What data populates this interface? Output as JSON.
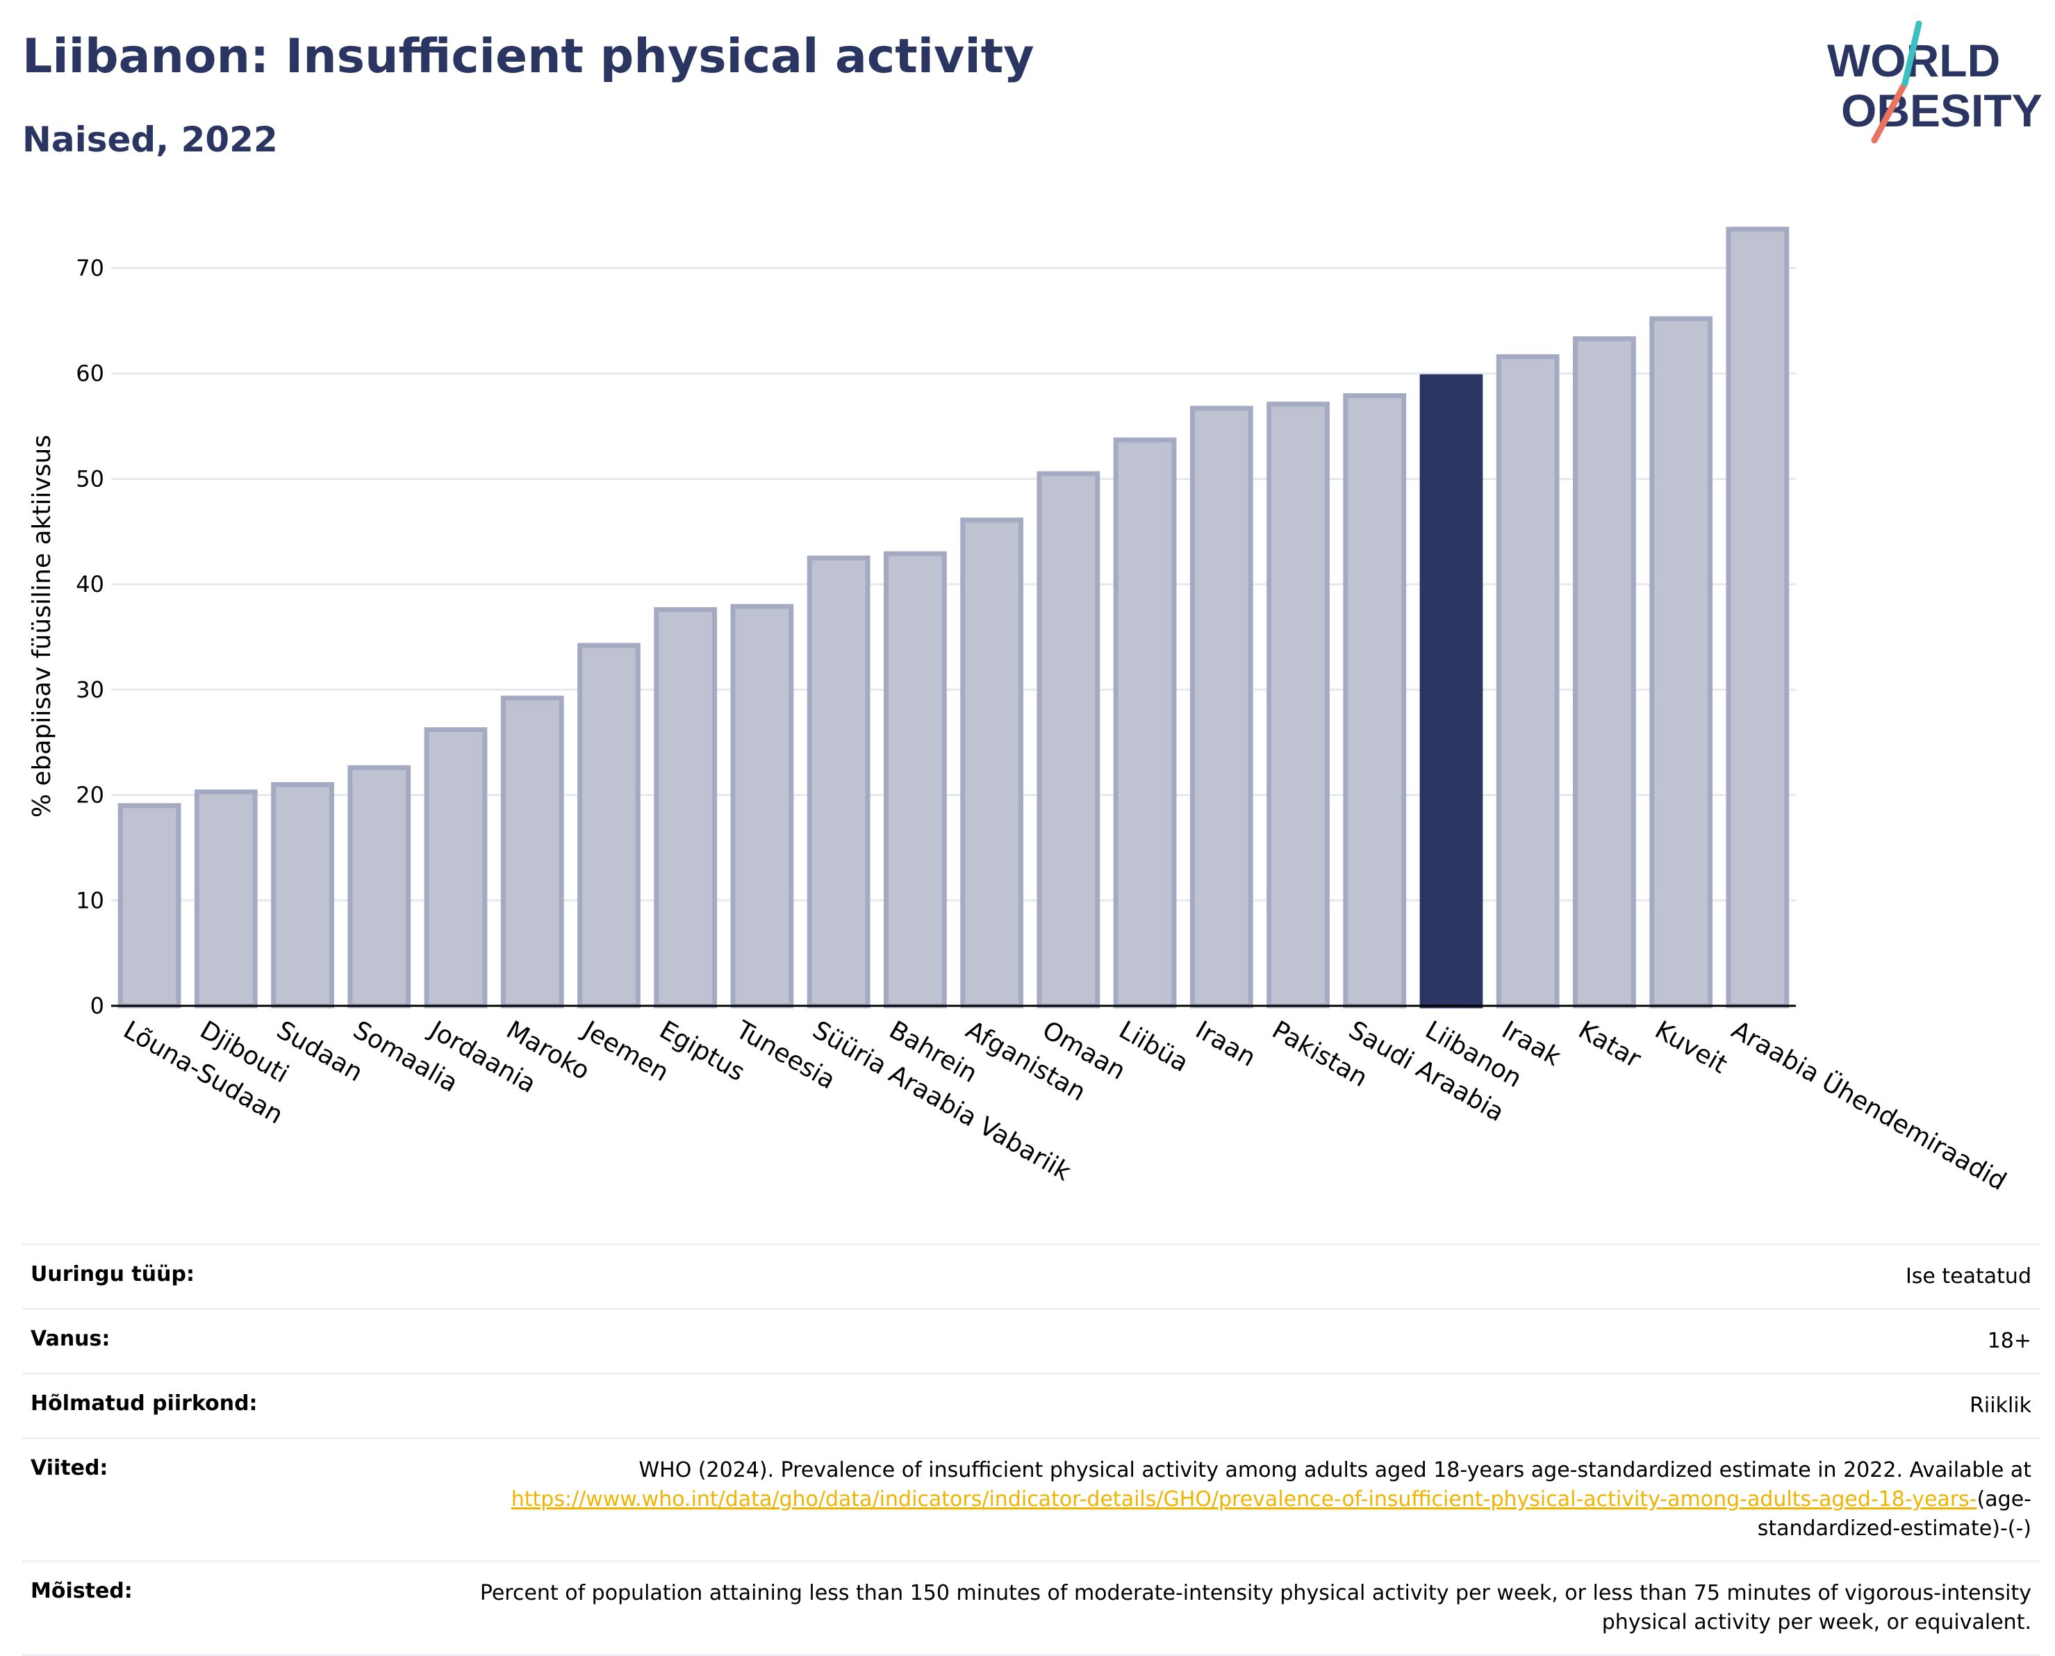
{
  "header": {
    "title": "Liibanon: Insufficient physical activity",
    "subtitle": "Naised, 2022"
  },
  "logo": {
    "line1": "WORLD",
    "line2": "OBESITY"
  },
  "chart_data": {
    "type": "bar",
    "title": "Liibanon: Insufficient physical activity",
    "subtitle": "Naised, 2022",
    "xlabel": "",
    "ylabel": "% ebapiisav füüsiline aktiivsus",
    "ylim": [
      0,
      76
    ],
    "yticks": [
      0,
      10,
      20,
      30,
      40,
      50,
      60,
      70
    ],
    "grid": true,
    "highlight": "Liibanon",
    "colors": {
      "bar": "#bfc3d1",
      "bar_border": "#a4aac2",
      "highlight": "#2b3562",
      "axis": "#000000",
      "grid": "#e6e8ef"
    },
    "categories": [
      "Lõuna-Sudaan",
      "Djibouti",
      "Sudaan",
      "Somaalia",
      "Jordaania",
      "Maroko",
      "Jeemen",
      "Egiptus",
      "Tuneesia",
      "Süüria Araabia Vabariik",
      "Bahrein",
      "Afganistan",
      "Omaan",
      "Liibüa",
      "Iraan",
      "Pakistan",
      "Saudi Araabia",
      "Liibanon",
      "Iraak",
      "Katar",
      "Kuveit",
      "Araabia Ühendemiraadid"
    ],
    "values": [
      19,
      20.3,
      21,
      22.6,
      26.2,
      29.2,
      34.2,
      37.6,
      37.9,
      42.5,
      42.9,
      46.1,
      50.5,
      53.7,
      56.7,
      57.1,
      57.9,
      59.7,
      61.6,
      63.3,
      65.2,
      73.7
    ]
  },
  "meta": [
    {
      "label": "Uuringu tüüp:",
      "value": "Ise teatatud"
    },
    {
      "label": "Vanus:",
      "value": "18+"
    },
    {
      "label": "Hõlmatud piirkond:",
      "value": "Riiklik"
    },
    {
      "label": "Viited:",
      "value_prefix": "WHO (2024). Prevalence of insufficient physical activity among adults aged 18-years age-standardized estimate in 2022. Available at",
      "link": "https://www.who.int/data/gho/data/indicators/indicator-details/GHO/prevalence-of-insufficient-physical-activity-among-adults-aged-18-years-",
      "value_suffix": "(age-standardized-estimate)-(-)"
    },
    {
      "label": "Mõisted:",
      "value": "Percent of population attaining less than 150 minutes of moderate-intensity physical activity per week, or less than 75 minutes of vigorous-intensity physical activity per week, or equivalent."
    }
  ]
}
